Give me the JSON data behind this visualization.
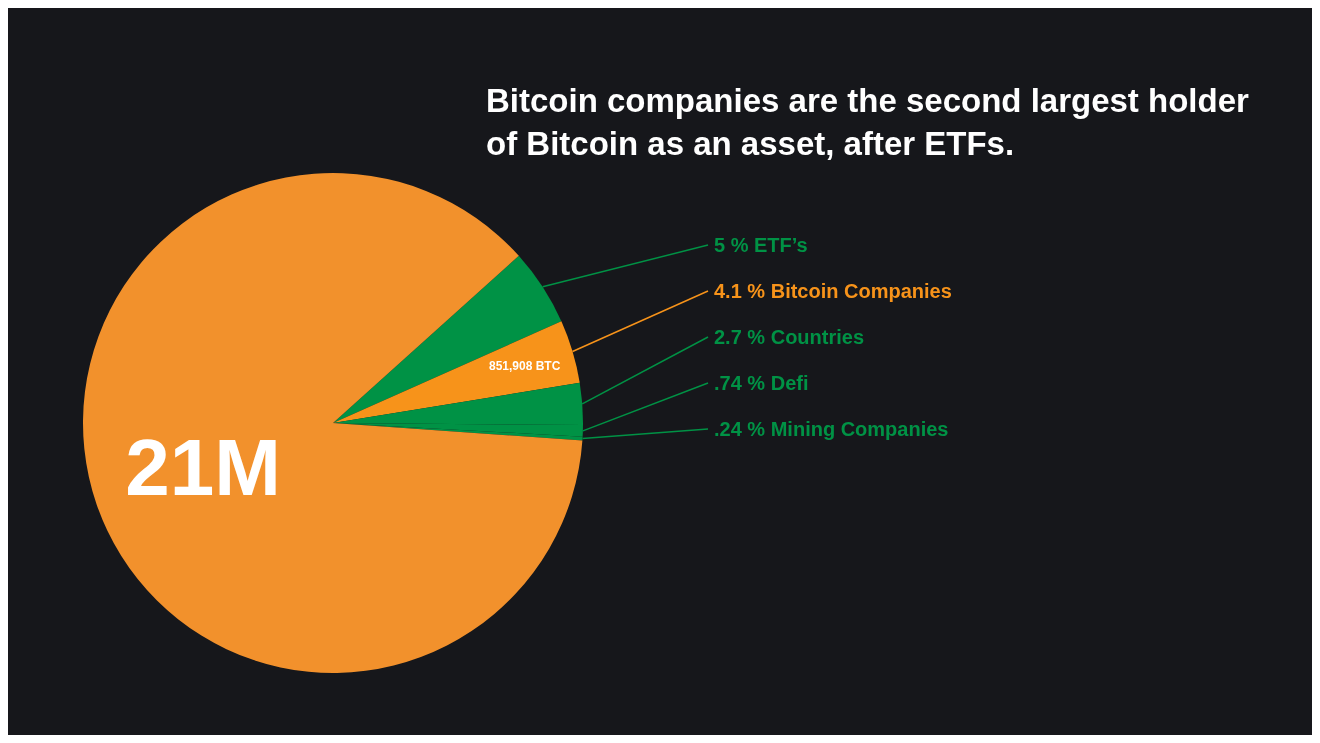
{
  "chart_data": {
    "type": "pie",
    "title": "Bitcoin companies are the second largest holder of Bitcoin as an asset, after ETFs.",
    "categories": [
      "ETF’s",
      "Bitcoin Companies",
      "Countries",
      "Defi",
      "Mining Companies",
      null
    ],
    "values": [
      5,
      4.1,
      2.7,
      0.74,
      0.24,
      87.22
    ],
    "value_labels": [
      "5 %",
      "4.1 %",
      "2.7 %",
      ".74 %",
      ".24 %",
      null
    ],
    "colors": [
      "#009245",
      "#f7931a",
      "#009245",
      "#009245",
      "#009245",
      "#f2912c"
    ],
    "annotations": [
      {
        "text": "851,908 BTC",
        "x": "Bitcoin Companies"
      },
      "21M"
    ]
  }
}
